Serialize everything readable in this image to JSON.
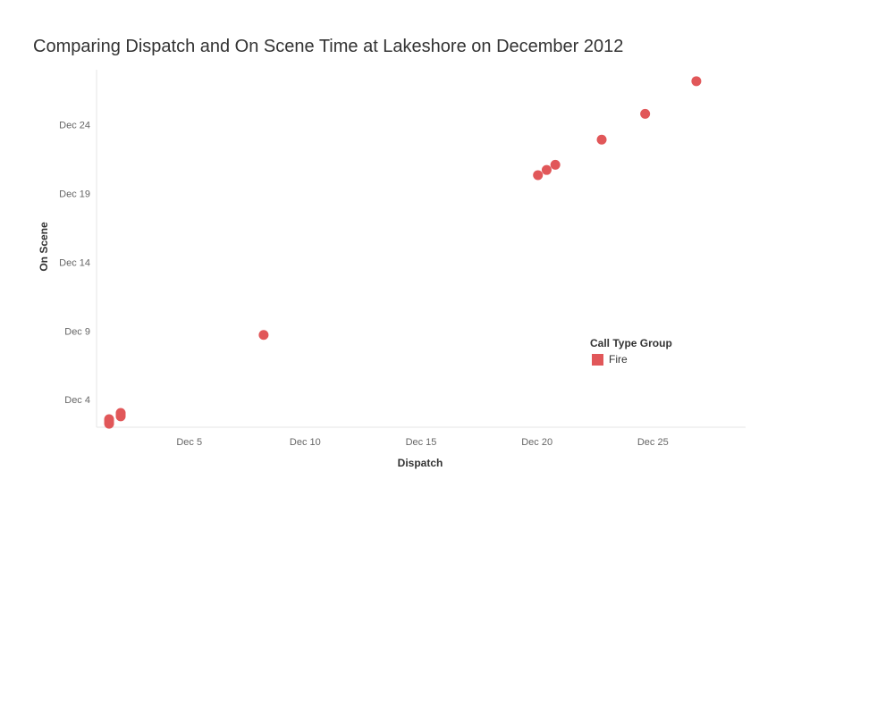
{
  "title": "Comparing Dispatch and On Scene Time at Lakeshore on December 2012",
  "chart_data": {
    "type": "scatter",
    "title": "Comparing Dispatch and On Scene Time at Lakeshore on December 2012",
    "xlabel": "Dispatch",
    "ylabel": "On Scene",
    "x_ticks": [
      {
        "value": "2012-12-05",
        "label": "Dec 5"
      },
      {
        "value": "2012-12-10",
        "label": "Dec 10"
      },
      {
        "value": "2012-12-15",
        "label": "Dec 15"
      },
      {
        "value": "2012-12-20",
        "label": "Dec 20"
      },
      {
        "value": "2012-12-25",
        "label": "Dec 25"
      }
    ],
    "y_ticks": [
      {
        "value": "2012-12-04",
        "label": "Dec 4"
      },
      {
        "value": "2012-12-09",
        "label": "Dec 9"
      },
      {
        "value": "2012-12-14",
        "label": "Dec 14"
      },
      {
        "value": "2012-12-19",
        "label": "Dec 19"
      },
      {
        "value": "2012-12-24",
        "label": "Dec 24"
      }
    ],
    "xlim": [
      "2012-12-01",
      "2012-12-29"
    ],
    "ylim": [
      "2012-12-02",
      "2012-12-28"
    ],
    "grid": false,
    "legend": {
      "title": "Call Type Group",
      "placement": "right"
    },
    "series": [
      {
        "name": "Fire",
        "color": "#E15759",
        "points": [
          {
            "x": "2012-12-01T13:00",
            "y": "2012-12-02T06:00"
          },
          {
            "x": "2012-12-01T13:00",
            "y": "2012-12-02T09:00"
          },
          {
            "x": "2012-12-01T13:00",
            "y": "2012-12-02T12:00"
          },
          {
            "x": "2012-12-01T13:00",
            "y": "2012-12-02T14:00"
          },
          {
            "x": "2012-12-02T01:00",
            "y": "2012-12-02T19:00"
          },
          {
            "x": "2012-12-02T01:00",
            "y": "2012-12-02T22:00"
          },
          {
            "x": "2012-12-02T01:00",
            "y": "2012-12-03T01:00"
          },
          {
            "x": "2012-12-08T05:00",
            "y": "2012-12-08T17:00"
          },
          {
            "x": "2012-12-20T01:00",
            "y": "2012-12-20T08:00"
          },
          {
            "x": "2012-12-20T10:00",
            "y": "2012-12-20T17:00"
          },
          {
            "x": "2012-12-20T19:00",
            "y": "2012-12-21T02:00"
          },
          {
            "x": "2012-12-22T19:00",
            "y": "2012-12-22T22:00"
          },
          {
            "x": "2012-12-24T16:00",
            "y": "2012-12-24T19:00"
          },
          {
            "x": "2012-12-26T21:00",
            "y": "2012-12-27T04:00"
          }
        ]
      }
    ]
  }
}
